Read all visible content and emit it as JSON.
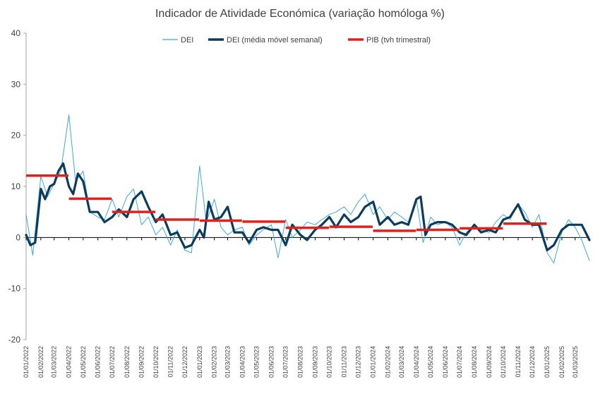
{
  "chart_data": {
    "type": "line",
    "title": "Indicador de Atividade Económica (variação homóloga %)",
    "xlabel": "",
    "ylabel": "",
    "ylim": [
      -20,
      40
    ],
    "yticks": [
      -20,
      -10,
      0,
      10,
      20,
      30,
      40
    ],
    "xlim": [
      "2022-01-01",
      "2025-03-31"
    ],
    "xticks": [
      "01/01/2022",
      "01/02/2022",
      "01/03/2022",
      "01/04/2022",
      "01/05/2022",
      "01/06/2022",
      "01/07/2022",
      "01/08/2022",
      "01/09/2022",
      "01/10/2022",
      "01/11/2022",
      "01/12/2022",
      "01/01/2023",
      "01/02/2023",
      "01/03/2023",
      "01/04/2023",
      "01/05/2023",
      "01/06/2023",
      "01/07/2023",
      "01/08/2023",
      "01/09/2023",
      "01/10/2023",
      "01/11/2023",
      "01/12/2023",
      "01/01/2024",
      "01/02/2024",
      "01/03/2024",
      "01/04/2024",
      "01/05/2024",
      "01/06/2024",
      "01/07/2024",
      "01/08/2024",
      "01/09/2024",
      "01/10/2024",
      "01/11/2024",
      "01/12/2024",
      "01/01/2025",
      "01/02/2025",
      "01/03/2025"
    ],
    "legend_position": "top",
    "grid": false,
    "series": [
      {
        "name": "DEI",
        "color": "#3fa9d6",
        "style": "thin line",
        "x": [
          "2022-01-01",
          "2022-01-15",
          "2022-02-01",
          "2022-02-15",
          "2022-03-01",
          "2022-03-15",
          "2022-04-01",
          "2022-04-15",
          "2022-05-01",
          "2022-05-15",
          "2022-06-01",
          "2022-06-15",
          "2022-07-01",
          "2022-07-15",
          "2022-08-01",
          "2022-08-15",
          "2022-09-01",
          "2022-09-15",
          "2022-10-01",
          "2022-10-15",
          "2022-11-01",
          "2022-11-15",
          "2022-12-01",
          "2022-12-15",
          "2023-01-01",
          "2023-01-15",
          "2023-02-01",
          "2023-02-15",
          "2023-03-01",
          "2023-03-15",
          "2023-04-01",
          "2023-04-15",
          "2023-05-01",
          "2023-05-15",
          "2023-06-01",
          "2023-06-15",
          "2023-07-01",
          "2023-07-15",
          "2023-08-01",
          "2023-08-15",
          "2023-09-01",
          "2023-09-15",
          "2023-10-01",
          "2023-10-15",
          "2023-11-01",
          "2023-11-15",
          "2023-12-01",
          "2023-12-15",
          "2024-01-01",
          "2024-01-15",
          "2024-02-01",
          "2024-02-15",
          "2024-03-01",
          "2024-03-15",
          "2024-04-01",
          "2024-04-15",
          "2024-05-01",
          "2024-05-15",
          "2024-06-01",
          "2024-06-15",
          "2024-07-01",
          "2024-07-15",
          "2024-08-01",
          "2024-08-15",
          "2024-09-01",
          "2024-09-15",
          "2024-10-01",
          "2024-10-15",
          "2024-11-01",
          "2024-11-15",
          "2024-12-01",
          "2024-12-15",
          "2025-01-01",
          "2025-01-15",
          "2025-02-01",
          "2025-02-15",
          "2025-03-01",
          "2025-03-15",
          "2025-03-31"
        ],
        "values": [
          4.5,
          -3.5,
          12.0,
          8.0,
          10.5,
          13.0,
          24.0,
          11.0,
          13.0,
          5.0,
          4.0,
          3.5,
          7.5,
          4.0,
          8.0,
          9.5,
          2.5,
          4.0,
          0.5,
          2.0,
          -1.5,
          1.5,
          -2.5,
          -3.0,
          14.0,
          3.0,
          7.5,
          2.0,
          0.5,
          1.5,
          2.0,
          -1.5,
          0.5,
          1.5,
          2.5,
          -4.0,
          3.5,
          0.0,
          1.5,
          3.0,
          2.5,
          3.5,
          4.5,
          5.0,
          6.0,
          4.5,
          7.0,
          8.5,
          4.5,
          6.0,
          3.5,
          5.0,
          4.0,
          3.0,
          7.5,
          -1.0,
          4.0,
          2.5,
          3.0,
          2.0,
          -1.5,
          1.0,
          2.5,
          1.5,
          1.0,
          3.0,
          4.5,
          3.5,
          6.5,
          5.0,
          2.0,
          4.5,
          -3.0,
          -5.0,
          1.0,
          3.5,
          2.0,
          -0.5,
          -4.5
        ]
      },
      {
        "name": "DEI (média móvel semanal)",
        "color": "#0b3c5d",
        "style": "thick line",
        "x": [
          "2022-01-01",
          "2022-01-10",
          "2022-01-20",
          "2022-02-01",
          "2022-02-10",
          "2022-02-20",
          "2022-03-01",
          "2022-03-10",
          "2022-03-20",
          "2022-04-01",
          "2022-04-10",
          "2022-04-20",
          "2022-05-01",
          "2022-05-15",
          "2022-06-01",
          "2022-06-15",
          "2022-07-01",
          "2022-07-15",
          "2022-08-01",
          "2022-08-15",
          "2022-09-01",
          "2022-09-15",
          "2022-10-01",
          "2022-10-15",
          "2022-11-01",
          "2022-11-15",
          "2022-12-01",
          "2022-12-15",
          "2023-01-01",
          "2023-01-10",
          "2023-01-20",
          "2023-02-01",
          "2023-02-15",
          "2023-03-01",
          "2023-03-15",
          "2023-04-01",
          "2023-04-15",
          "2023-05-01",
          "2023-05-15",
          "2023-06-01",
          "2023-06-15",
          "2023-07-01",
          "2023-07-15",
          "2023-08-01",
          "2023-08-15",
          "2023-09-01",
          "2023-09-15",
          "2023-10-01",
          "2023-10-15",
          "2023-11-01",
          "2023-11-15",
          "2023-12-01",
          "2023-12-15",
          "2024-01-01",
          "2024-01-15",
          "2024-02-01",
          "2024-02-15",
          "2024-03-01",
          "2024-03-15",
          "2024-04-01",
          "2024-04-10",
          "2024-04-20",
          "2024-05-01",
          "2024-05-15",
          "2024-06-01",
          "2024-06-15",
          "2024-07-01",
          "2024-07-15",
          "2024-08-01",
          "2024-08-15",
          "2024-09-01",
          "2024-09-15",
          "2024-10-01",
          "2024-10-15",
          "2024-11-01",
          "2024-11-15",
          "2024-12-01",
          "2024-12-15",
          "2025-01-01",
          "2025-01-15",
          "2025-02-01",
          "2025-02-15",
          "2025-03-01",
          "2025-03-15",
          "2025-03-31"
        ],
        "values": [
          0.5,
          -1.5,
          -1.0,
          9.5,
          7.5,
          10.0,
          10.5,
          13.0,
          14.5,
          10.0,
          8.5,
          12.5,
          11.0,
          5.0,
          5.0,
          3.0,
          4.0,
          5.5,
          4.0,
          7.5,
          9.0,
          6.0,
          3.0,
          4.5,
          0.5,
          1.0,
          -2.0,
          -1.5,
          1.5,
          0.0,
          7.0,
          3.5,
          4.0,
          6.0,
          1.0,
          1.0,
          -1.0,
          1.5,
          2.0,
          1.5,
          1.5,
          -1.5,
          2.5,
          0.5,
          -0.5,
          1.5,
          2.5,
          4.0,
          2.0,
          4.5,
          3.0,
          4.0,
          6.0,
          7.0,
          2.5,
          4.0,
          2.5,
          3.0,
          2.5,
          7.5,
          8.0,
          0.5,
          2.5,
          3.0,
          3.0,
          2.5,
          1.0,
          0.5,
          2.5,
          1.0,
          1.5,
          1.0,
          3.5,
          4.0,
          6.5,
          3.5,
          2.5,
          2.5,
          -2.5,
          -1.5,
          1.5,
          2.5,
          2.5,
          2.5,
          -0.5
        ]
      },
      {
        "name": "PIB (tvh trimestral)",
        "color": "#e32119",
        "style": "thick step segments",
        "segments": [
          {
            "from": "2022-01-01",
            "to": "2022-03-31",
            "value": 12.1
          },
          {
            "from": "2022-04-01",
            "to": "2022-06-30",
            "value": 7.6
          },
          {
            "from": "2022-07-01",
            "to": "2022-09-30",
            "value": 5.0
          },
          {
            "from": "2022-10-01",
            "to": "2022-12-31",
            "value": 3.5
          },
          {
            "from": "2023-01-01",
            "to": "2023-03-31",
            "value": 3.3
          },
          {
            "from": "2023-04-01",
            "to": "2023-06-30",
            "value": 3.1
          },
          {
            "from": "2023-07-01",
            "to": "2023-09-30",
            "value": 1.9
          },
          {
            "from": "2023-10-01",
            "to": "2023-12-31",
            "value": 2.1
          },
          {
            "from": "2024-01-01",
            "to": "2024-03-31",
            "value": 1.3
          },
          {
            "from": "2024-04-01",
            "to": "2024-06-30",
            "value": 1.5
          },
          {
            "from": "2024-07-01",
            "to": "2024-09-30",
            "value": 1.8
          },
          {
            "from": "2024-10-01",
            "to": "2024-12-31",
            "value": 2.7
          }
        ]
      }
    ]
  }
}
